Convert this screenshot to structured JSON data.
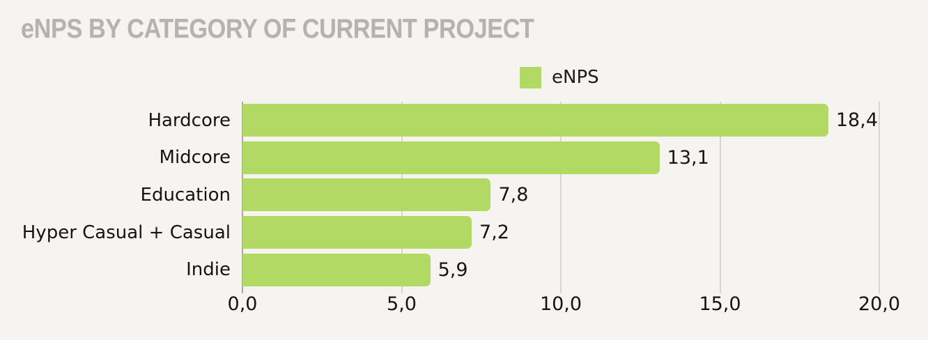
{
  "title": "eNPS BY CATEGORY OF CURRENT PROJECT",
  "legend": {
    "label": "eNPS",
    "swatch_color": "#b2d964"
  },
  "chart_data": {
    "type": "bar",
    "orientation": "horizontal",
    "title": "eNPS BY CATEGORY OF CURRENT PROJECT",
    "series_name": "eNPS",
    "categories": [
      "Hardcore",
      "Midcore",
      "Education",
      "Hyper Casual + Casual",
      "Indie"
    ],
    "values": [
      18.4,
      13.1,
      7.8,
      7.2,
      5.9
    ],
    "value_labels": [
      "18,4",
      "13,1",
      "7,8",
      "7,2",
      "5,9"
    ],
    "xlim": [
      0,
      20
    ],
    "x_ticks": [
      0,
      5,
      10,
      15,
      20
    ],
    "x_tick_labels": [
      "0,0",
      "5,0",
      "10,0",
      "15,0",
      "20,0"
    ],
    "grid": "vertical",
    "legend_position": "top-center",
    "bar_color": "#b2d964",
    "background_color": "#f5f4f1",
    "title_color": "#b4b3b0",
    "text_color": "#141414",
    "gridline_color": "#d6d5d2",
    "axis_line_color": "#a7a7a4"
  }
}
